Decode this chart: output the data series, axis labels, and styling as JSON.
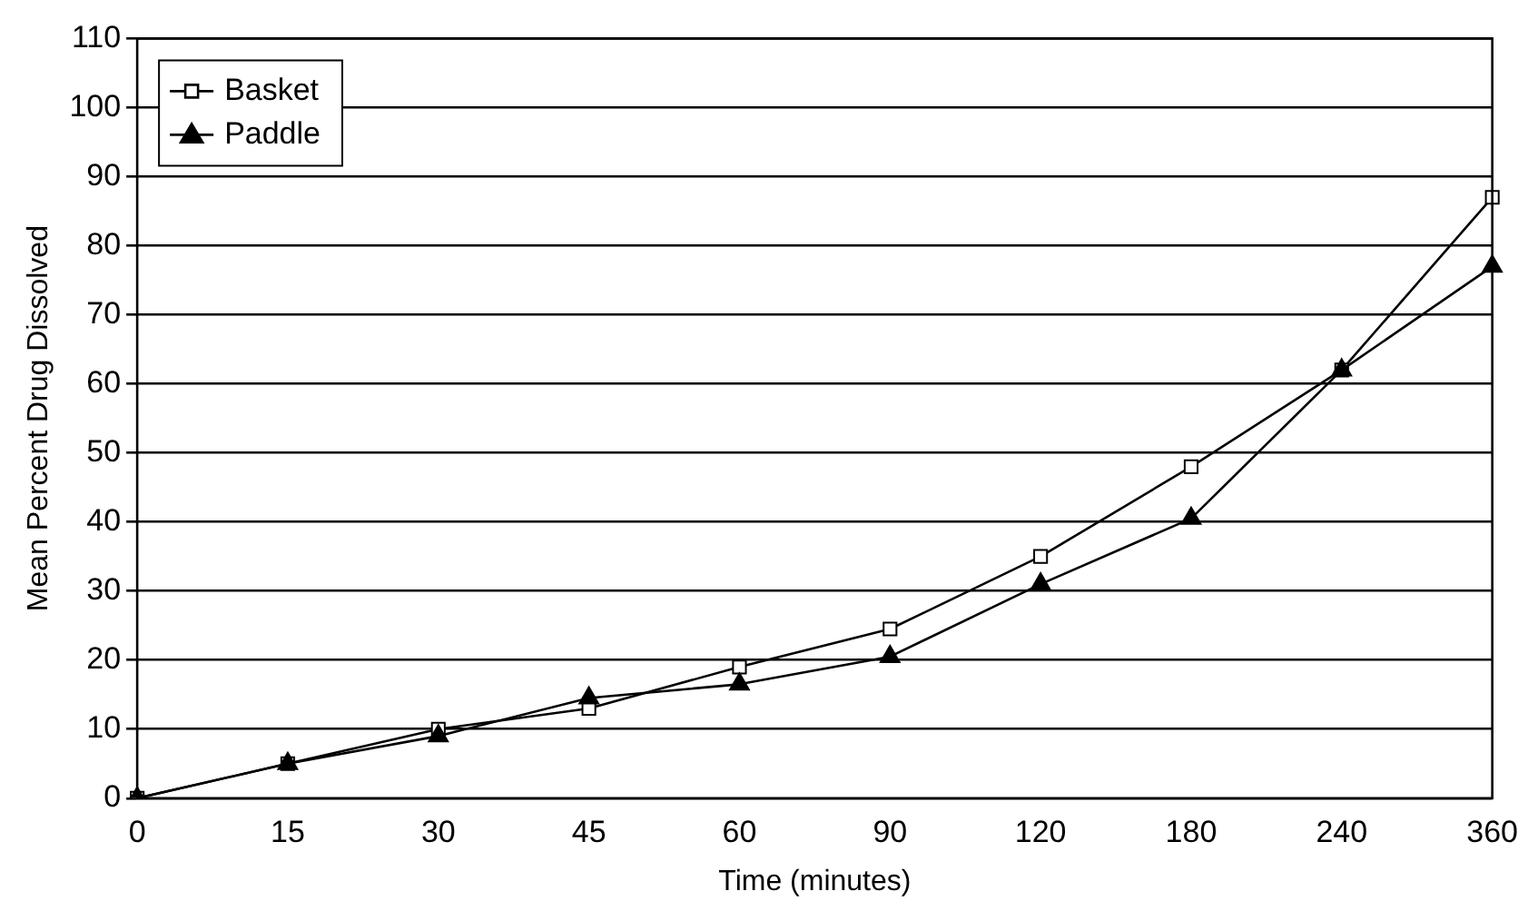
{
  "chart_data": {
    "type": "line",
    "xlabel": "Time (minutes)",
    "ylabel": "Mean Percent Drug Dissolved",
    "categories": [
      "0",
      "15",
      "30",
      "45",
      "60",
      "90",
      "120",
      "180",
      "240",
      "360"
    ],
    "series": [
      {
        "name": "Basket",
        "color": "#000000",
        "marker": "square",
        "values": [
          0,
          5,
          10,
          13,
          19,
          24.5,
          35,
          48,
          62,
          87
        ]
      },
      {
        "name": "Paddle",
        "color": "#000000",
        "marker": "triangle",
        "values": [
          0,
          5,
          9,
          14.5,
          16.5,
          20.5,
          31,
          40.5,
          62,
          77
        ]
      }
    ],
    "ylim": [
      0,
      110
    ],
    "yticks": [
      0,
      10,
      20,
      30,
      40,
      50,
      60,
      70,
      80,
      90,
      100,
      110
    ],
    "grid": "y",
    "legend": "top left",
    "line_style": "solid"
  }
}
